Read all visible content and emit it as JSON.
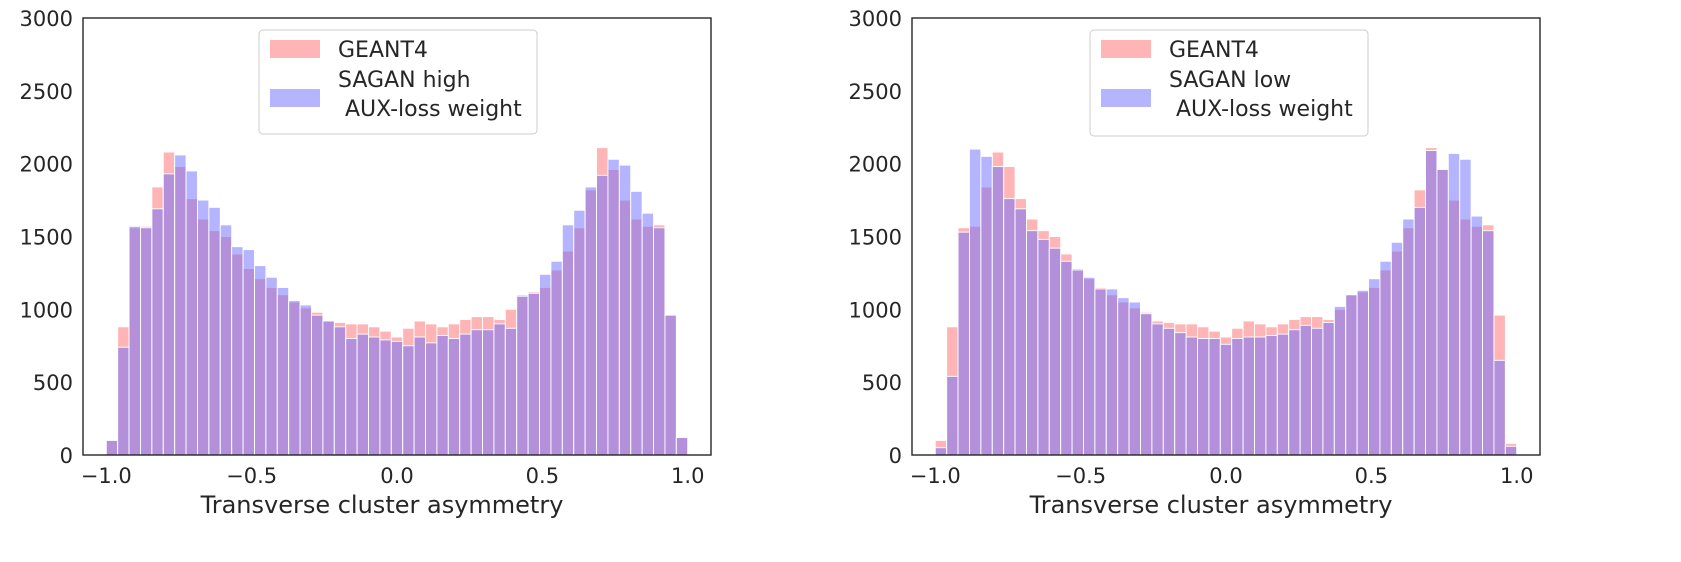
{
  "colors": {
    "series_a": "#ff6b6b",
    "series_b": "#6b6bff",
    "axis": "#262626",
    "background": "#ffffff"
  },
  "chart_data": [
    {
      "type": "bar",
      "subtype": "overlaid-histogram",
      "title": "",
      "xlabel": "Transverse cluster asymmetry",
      "ylabel": "",
      "xlim": [
        -1.08,
        1.08
      ],
      "ylim": [
        0,
        3000
      ],
      "xticks": [
        "−1.0",
        "−0.5",
        "0.0",
        "0.5",
        "1.0"
      ],
      "yticks": [
        "0",
        "500",
        "1000",
        "1500",
        "2000",
        "2500",
        "3000"
      ],
      "bin_range": [
        -1.0,
        1.0
      ],
      "legend_position": "upper-center",
      "series": [
        {
          "name": "GEANT4",
          "values": [
            100,
            880,
            1560,
            1570,
            1840,
            2080,
            1980,
            1760,
            1620,
            1540,
            1500,
            1380,
            1280,
            1210,
            1150,
            1100,
            1050,
            1010,
            980,
            920,
            910,
            900,
            900,
            880,
            850,
            810,
            870,
            920,
            900,
            880,
            900,
            930,
            950,
            950,
            930,
            1000,
            1100,
            1120,
            1150,
            1270,
            1400,
            1560,
            1820,
            2110,
            1960,
            1750,
            1620,
            1570,
            1580,
            960,
            120
          ]
        },
        {
          "name": "SAGAN high\n AUX-loss weight",
          "values": [
            100,
            740,
            1570,
            1560,
            1690,
            1930,
            2060,
            1950,
            1750,
            1700,
            1580,
            1430,
            1410,
            1300,
            1220,
            1150,
            1060,
            1030,
            960,
            920,
            880,
            800,
            830,
            810,
            790,
            780,
            750,
            810,
            770,
            820,
            800,
            830,
            860,
            860,
            900,
            870,
            1090,
            1110,
            1240,
            1330,
            1580,
            1680,
            1840,
            1920,
            2030,
            1990,
            1810,
            1660,
            1560,
            960,
            120
          ]
        }
      ]
    },
    {
      "type": "bar",
      "subtype": "overlaid-histogram",
      "title": "",
      "xlabel": "Transverse cluster asymmetry",
      "ylabel": "",
      "xlim": [
        -1.08,
        1.08
      ],
      "ylim": [
        0,
        3000
      ],
      "xticks": [
        "−1.0",
        "−0.5",
        "0.0",
        "0.5",
        "1.0"
      ],
      "yticks": [
        "0",
        "500",
        "1000",
        "1500",
        "2000",
        "2500",
        "3000"
      ],
      "bin_range": [
        -1.0,
        1.0
      ],
      "legend_position": "upper-center",
      "series": [
        {
          "name": "GEANT4",
          "values": [
            100,
            880,
            1560,
            1570,
            1840,
            2080,
            1980,
            1760,
            1620,
            1540,
            1500,
            1380,
            1280,
            1210,
            1150,
            1100,
            1050,
            1010,
            980,
            920,
            910,
            900,
            900,
            880,
            850,
            810,
            870,
            920,
            900,
            880,
            900,
            930,
            950,
            950,
            930,
            1000,
            1100,
            1120,
            1150,
            1270,
            1400,
            1560,
            1820,
            2110,
            1960,
            1750,
            1620,
            1570,
            1580,
            960,
            80
          ]
        },
        {
          "name": "SAGAN low\n AUX-loss weight",
          "values": [
            50,
            540,
            1530,
            2100,
            2050,
            1980,
            1760,
            1690,
            1540,
            1480,
            1420,
            1330,
            1270,
            1220,
            1140,
            1140,
            1080,
            1050,
            970,
            900,
            870,
            840,
            810,
            800,
            800,
            760,
            800,
            810,
            810,
            820,
            830,
            860,
            890,
            870,
            910,
            1020,
            1100,
            1130,
            1210,
            1330,
            1460,
            1620,
            1700,
            2090,
            1960,
            2070,
            2030,
            1640,
            1540,
            650,
            60
          ]
        }
      ]
    }
  ]
}
